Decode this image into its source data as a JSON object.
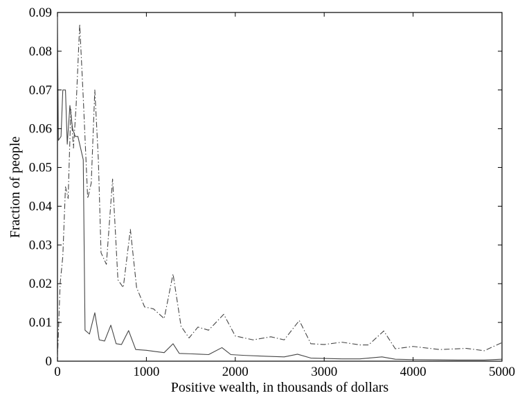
{
  "chart_data": {
    "type": "line",
    "title": "",
    "xlabel": "Positive wealth, in thousands of dollars",
    "ylabel": "Fraction of people",
    "xlim": [
      0,
      5000
    ],
    "ylim": [
      0,
      0.09
    ],
    "x_ticks": [
      "0",
      "1000",
      "2000",
      "3000",
      "4000",
      "5000"
    ],
    "y_ticks": [
      "0",
      "0.01",
      "0.02",
      "0.03",
      "0.04",
      "0.05",
      "0.06",
      "0.07",
      "0.08",
      "0.09"
    ],
    "grid": false,
    "legend": "none",
    "series": [
      {
        "style": "solid",
        "color": "#444444",
        "points": [
          [
            0,
            0.089
          ],
          [
            10,
            0.057
          ],
          [
            40,
            0.058
          ],
          [
            60,
            0.07
          ],
          [
            90,
            0.07
          ],
          [
            110,
            0.056
          ],
          [
            140,
            0.066
          ],
          [
            170,
            0.06
          ],
          [
            200,
            0.058
          ],
          [
            230,
            0.058
          ],
          [
            260,
            0.055
          ],
          [
            290,
            0.052
          ],
          [
            310,
            0.008
          ],
          [
            360,
            0.007
          ],
          [
            420,
            0.0125
          ],
          [
            470,
            0.0055
          ],
          [
            530,
            0.0052
          ],
          [
            600,
            0.0093
          ],
          [
            660,
            0.0045
          ],
          [
            720,
            0.0043
          ],
          [
            800,
            0.0079
          ],
          [
            880,
            0.003
          ],
          [
            1000,
            0.0028
          ],
          [
            1100,
            0.0025
          ],
          [
            1200,
            0.0022
          ],
          [
            1300,
            0.0045
          ],
          [
            1370,
            0.002
          ],
          [
            1500,
            0.0019
          ],
          [
            1600,
            0.0018
          ],
          [
            1700,
            0.0017
          ],
          [
            1850,
            0.0035
          ],
          [
            1950,
            0.0017
          ],
          [
            2100,
            0.0015
          ],
          [
            2300,
            0.0013
          ],
          [
            2550,
            0.0011
          ],
          [
            2700,
            0.0018
          ],
          [
            2850,
            0.0008
          ],
          [
            3000,
            0.0007
          ],
          [
            3200,
            0.0006
          ],
          [
            3400,
            0.0006
          ],
          [
            3650,
            0.0011
          ],
          [
            3800,
            0.0005
          ],
          [
            4000,
            0.0004
          ],
          [
            4500,
            0.0003
          ],
          [
            4800,
            0.0003
          ],
          [
            5000,
            0.0005
          ]
        ]
      },
      {
        "style": "dash-dot",
        "color": "#444444",
        "points": [
          [
            0,
            0.0005
          ],
          [
            30,
            0.02
          ],
          [
            60,
            0.027
          ],
          [
            90,
            0.045
          ],
          [
            120,
            0.042
          ],
          [
            150,
            0.065
          ],
          [
            180,
            0.055
          ],
          [
            210,
            0.066
          ],
          [
            250,
            0.087
          ],
          [
            290,
            0.068
          ],
          [
            340,
            0.042
          ],
          [
            380,
            0.046
          ],
          [
            420,
            0.07
          ],
          [
            460,
            0.052
          ],
          [
            490,
            0.028
          ],
          [
            550,
            0.025
          ],
          [
            620,
            0.047
          ],
          [
            680,
            0.021
          ],
          [
            740,
            0.019
          ],
          [
            820,
            0.034
          ],
          [
            890,
            0.019
          ],
          [
            980,
            0.014
          ],
          [
            1080,
            0.0135
          ],
          [
            1200,
            0.011
          ],
          [
            1300,
            0.0225
          ],
          [
            1390,
            0.009
          ],
          [
            1480,
            0.006
          ],
          [
            1580,
            0.0088
          ],
          [
            1700,
            0.008
          ],
          [
            1870,
            0.0121
          ],
          [
            2000,
            0.0065
          ],
          [
            2200,
            0.0055
          ],
          [
            2400,
            0.0063
          ],
          [
            2550,
            0.0055
          ],
          [
            2720,
            0.0105
          ],
          [
            2850,
            0.0045
          ],
          [
            3000,
            0.0043
          ],
          [
            3200,
            0.0049
          ],
          [
            3400,
            0.0042
          ],
          [
            3500,
            0.0042
          ],
          [
            3670,
            0.0078
          ],
          [
            3800,
            0.0032
          ],
          [
            4000,
            0.0038
          ],
          [
            4300,
            0.003
          ],
          [
            4600,
            0.0033
          ],
          [
            4800,
            0.0027
          ],
          [
            5000,
            0.0048
          ]
        ]
      }
    ]
  }
}
